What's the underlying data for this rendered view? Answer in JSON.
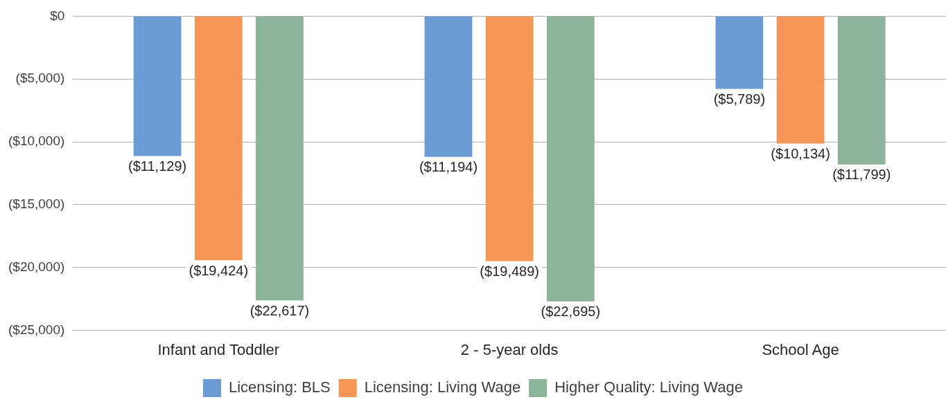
{
  "chart_data": {
    "type": "bar",
    "categories": [
      "Infant and Toddler",
      "2 - 5-year olds",
      "School Age"
    ],
    "series": [
      {
        "name": "Licensing: BLS",
        "color": "#6a9bd3",
        "values": [
          -11129,
          -11194,
          -5789
        ],
        "value_labels": [
          "($11,129)",
          "($11,194)",
          "($5,789)"
        ]
      },
      {
        "name": "Licensing: Living Wage",
        "color": "#f79656",
        "values": [
          -19424,
          -19489,
          -10134
        ],
        "value_labels": [
          "($19,424)",
          "($19,489)",
          "($10,134)"
        ]
      },
      {
        "name": "Higher Quality: Living Wage",
        "color": "#8cb49a",
        "values": [
          -22617,
          -22695,
          -11799
        ],
        "value_labels": [
          "($22,617)",
          "($22,695)",
          "($11,799)"
        ]
      }
    ],
    "ylim": [
      -25000,
      0
    ],
    "yticks": [
      {
        "value": -25000,
        "label": "($25,000)"
      },
      {
        "value": -20000,
        "label": "($20,000)"
      },
      {
        "value": -15000,
        "label": "($15,000)"
      },
      {
        "value": -10000,
        "label": "($10,000)"
      },
      {
        "value": -5000,
        "label": "($5,000)"
      },
      {
        "value": 0,
        "label": "$0"
      }
    ],
    "grid": "y",
    "legend": "bottom"
  }
}
